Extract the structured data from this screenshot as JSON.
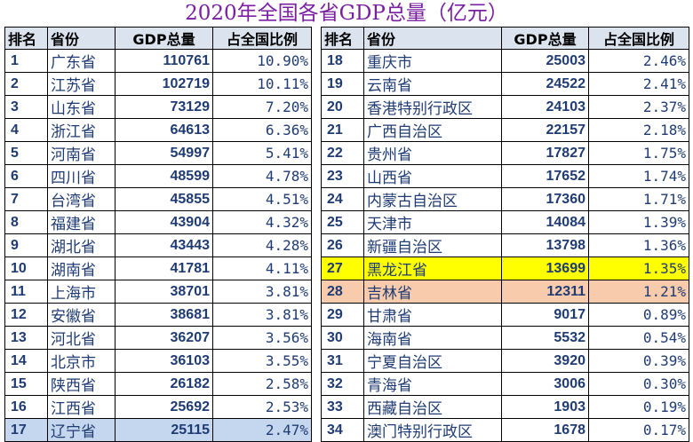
{
  "title": "2020年全国各省GDP总量（亿元）",
  "headers": {
    "rank": "排名",
    "province": "省份",
    "gdp": "GDP总量",
    "share": "占全国比例"
  },
  "left_rows": [
    {
      "rank": "1",
      "province": "广东省",
      "gdp": "110761",
      "share": "10.90%"
    },
    {
      "rank": "2",
      "province": "江苏省",
      "gdp": "102719",
      "share": "10.11%"
    },
    {
      "rank": "3",
      "province": "山东省",
      "gdp": "73129",
      "share": "7.20%"
    },
    {
      "rank": "4",
      "province": "浙江省",
      "gdp": "64613",
      "share": "6.36%"
    },
    {
      "rank": "5",
      "province": "河南省",
      "gdp": "54997",
      "share": "5.41%"
    },
    {
      "rank": "6",
      "province": "四川省",
      "gdp": "48599",
      "share": "4.78%"
    },
    {
      "rank": "7",
      "province": "台湾省",
      "gdp": "45855",
      "share": "4.51%"
    },
    {
      "rank": "8",
      "province": "福建省",
      "gdp": "43904",
      "share": "4.32%"
    },
    {
      "rank": "9",
      "province": "湖北省",
      "gdp": "43443",
      "share": "4.28%"
    },
    {
      "rank": "10",
      "province": "湖南省",
      "gdp": "41781",
      "share": "4.11%"
    },
    {
      "rank": "11",
      "province": "上海市",
      "gdp": "38701",
      "share": "3.81%"
    },
    {
      "rank": "12",
      "province": "安徽省",
      "gdp": "38681",
      "share": "3.81%"
    },
    {
      "rank": "13",
      "province": "河北省",
      "gdp": "36207",
      "share": "3.56%"
    },
    {
      "rank": "14",
      "province": "北京市",
      "gdp": "36103",
      "share": "3.55%"
    },
    {
      "rank": "15",
      "province": "陕西省",
      "gdp": "26182",
      "share": "2.58%"
    },
    {
      "rank": "16",
      "province": "江西省",
      "gdp": "25692",
      "share": "2.53%"
    },
    {
      "rank": "17",
      "province": "辽宁省",
      "gdp": "25115",
      "share": "2.47%"
    }
  ],
  "right_rows": [
    {
      "rank": "18",
      "province": "重庆市",
      "gdp": "25003",
      "share": "2.46%"
    },
    {
      "rank": "19",
      "province": "云南省",
      "gdp": "24522",
      "share": "2.41%"
    },
    {
      "rank": "20",
      "province": "香港特别行政区",
      "gdp": "24103",
      "share": "2.37%"
    },
    {
      "rank": "21",
      "province": "广西自治区",
      "gdp": "22157",
      "share": "2.18%"
    },
    {
      "rank": "22",
      "province": "贵州省",
      "gdp": "17827",
      "share": "1.75%"
    },
    {
      "rank": "23",
      "province": "山西省",
      "gdp": "17652",
      "share": "1.74%"
    },
    {
      "rank": "24",
      "province": "内蒙古自治区",
      "gdp": "17360",
      "share": "1.71%"
    },
    {
      "rank": "25",
      "province": "天津市",
      "gdp": "14084",
      "share": "1.39%"
    },
    {
      "rank": "26",
      "province": "新疆自治区",
      "gdp": "13798",
      "share": "1.36%"
    },
    {
      "rank": "27",
      "province": "黑龙江省",
      "gdp": "13699",
      "share": "1.35%"
    },
    {
      "rank": "28",
      "province": "吉林省",
      "gdp": "12311",
      "share": "1.21%"
    },
    {
      "rank": "29",
      "province": "甘肃省",
      "gdp": "9017",
      "share": "0.89%"
    },
    {
      "rank": "30",
      "province": "海南省",
      "gdp": "5532",
      "share": "0.54%"
    },
    {
      "rank": "31",
      "province": "宁夏自治区",
      "gdp": "3920",
      "share": "0.39%"
    },
    {
      "rank": "32",
      "province": "青海省",
      "gdp": "3006",
      "share": "0.30%"
    },
    {
      "rank": "33",
      "province": "西藏自治区",
      "gdp": "1903",
      "share": "0.19%"
    },
    {
      "rank": "34",
      "province": "澳门特别行政区",
      "gdp": "1678",
      "share": "0.17%"
    }
  ],
  "highlights": {
    "17": "#c5d7ee",
    "27": "#ffff00",
    "28": "#f8cbad"
  },
  "colors": {
    "title": "#7a1fa2",
    "text": "#1f3b73",
    "header_bg": "#dbe3ef"
  }
}
